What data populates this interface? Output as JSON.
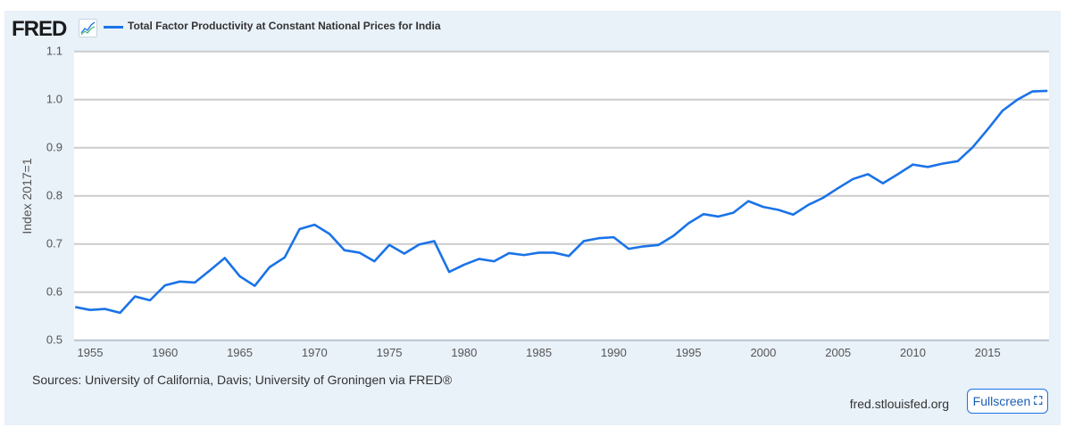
{
  "header": {
    "logo": "FRED",
    "series_title": "Total Factor Productivity at Constant National Prices for India"
  },
  "footer": {
    "sources": "Sources: University of California, Davis; University of Groningen via FRED®",
    "site": "fred.stlouisfed.org",
    "fullscreen_label": "Fullscreen"
  },
  "colors": {
    "line": "#1a73e8",
    "panel": "#e9f1f9"
  },
  "chart_data": {
    "type": "line",
    "title": "Total Factor Productivity at Constant National Prices for India",
    "xlabel": "",
    "ylabel": "Index 2017=1",
    "xlim": [
      1954,
      2019
    ],
    "ylim": [
      0.5,
      1.1
    ],
    "yticks": [
      "0.5",
      "0.6",
      "0.7",
      "0.8",
      "0.9",
      "1.0",
      "1.1"
    ],
    "xticks": [
      "1955",
      "1960",
      "1965",
      "1970",
      "1975",
      "1980",
      "1985",
      "1990",
      "1995",
      "2000",
      "2005",
      "2010",
      "2015"
    ],
    "grid": true,
    "x": [
      1954,
      1955,
      1956,
      1957,
      1958,
      1959,
      1960,
      1961,
      1962,
      1963,
      1964,
      1965,
      1966,
      1967,
      1968,
      1969,
      1970,
      1971,
      1972,
      1973,
      1974,
      1975,
      1976,
      1977,
      1978,
      1979,
      1980,
      1981,
      1982,
      1983,
      1984,
      1985,
      1986,
      1987,
      1988,
      1989,
      1990,
      1991,
      1992,
      1993,
      1994,
      1995,
      1996,
      1997,
      1998,
      1999,
      2000,
      2001,
      2002,
      2003,
      2004,
      2005,
      2006,
      2007,
      2008,
      2009,
      2010,
      2011,
      2012,
      2013,
      2014,
      2015,
      2016,
      2017,
      2018,
      2019
    ],
    "y": [
      0.569,
      0.563,
      0.565,
      0.557,
      0.591,
      0.583,
      0.614,
      0.622,
      0.62,
      0.645,
      0.671,
      0.633,
      0.613,
      0.652,
      0.672,
      0.731,
      0.74,
      0.721,
      0.687,
      0.682,
      0.664,
      0.698,
      0.68,
      0.699,
      0.706,
      0.642,
      0.657,
      0.669,
      0.664,
      0.681,
      0.677,
      0.682,
      0.682,
      0.675,
      0.706,
      0.712,
      0.714,
      0.69,
      0.695,
      0.698,
      0.717,
      0.743,
      0.762,
      0.757,
      0.765,
      0.789,
      0.777,
      0.771,
      0.761,
      0.781,
      0.796,
      0.816,
      0.835,
      0.845,
      0.826,
      0.845,
      0.865,
      0.86,
      0.867,
      0.872,
      0.901,
      0.938,
      0.977,
      1.0,
      1.017,
      1.018
    ]
  }
}
